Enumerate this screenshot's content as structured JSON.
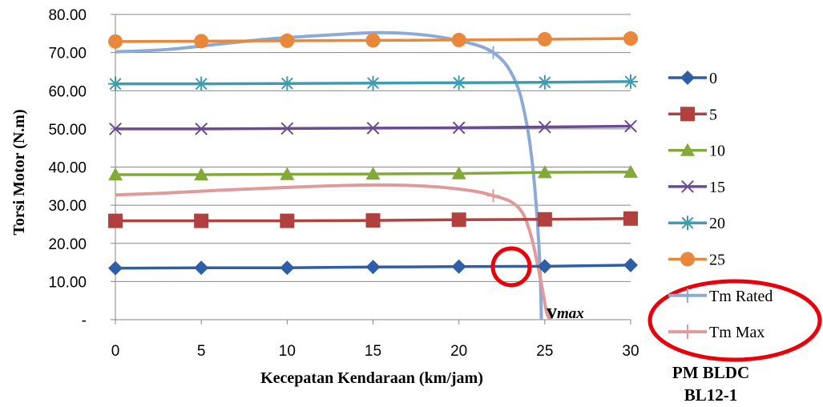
{
  "chart_data": {
    "type": "line",
    "xlabel": "Kecepatan Kendaraan (km/jam)",
    "ylabel": "Torsi Motor (N.m)",
    "xlim": [
      0,
      30
    ],
    "ylim": [
      0,
      80
    ],
    "x_ticks": [
      0,
      5,
      10,
      15,
      20,
      25,
      30
    ],
    "y_tick_labels": [
      "-",
      "10.00",
      "20.00",
      "30.00",
      "40.00",
      "50.00",
      "60.00",
      "70.00",
      "80.00"
    ],
    "grid": "horizontal",
    "legend_position": "right",
    "x": [
      0,
      5,
      10,
      15,
      20,
      25,
      30
    ],
    "series": [
      {
        "name": "0",
        "color": "#2E5EA6",
        "marker": "diamond",
        "values": [
          13.5,
          13.6,
          13.6,
          13.8,
          13.9,
          14.0,
          14.3
        ]
      },
      {
        "name": "5",
        "color": "#B0413E",
        "marker": "square",
        "values": [
          25.9,
          25.9,
          25.9,
          26.0,
          26.2,
          26.3,
          26.5
        ]
      },
      {
        "name": "10",
        "color": "#83A93B",
        "marker": "triangle",
        "values": [
          38.0,
          38.0,
          38.1,
          38.2,
          38.3,
          38.6,
          38.7
        ]
      },
      {
        "name": "15",
        "color": "#6A4C93",
        "marker": "x",
        "values": [
          50.0,
          50.0,
          50.1,
          50.2,
          50.3,
          50.5,
          50.7
        ]
      },
      {
        "name": "20",
        "color": "#3F9BB0",
        "marker": "star",
        "values": [
          61.8,
          61.8,
          61.9,
          62.0,
          62.1,
          62.2,
          62.4
        ]
      },
      {
        "name": "25",
        "color": "#E9883A",
        "marker": "circle",
        "values": [
          72.9,
          73.0,
          73.1,
          73.2,
          73.3,
          73.5,
          73.7
        ]
      }
    ],
    "curves": [
      {
        "name": "Tm Rated",
        "color": "#8DA9D6",
        "marker": "plus",
        "points": [
          [
            0,
            70.2
          ],
          [
            3,
            70.8
          ],
          [
            6,
            72.2
          ],
          [
            9,
            73.6
          ],
          [
            12,
            74.5
          ],
          [
            15,
            75.2
          ],
          [
            17,
            75.0
          ],
          [
            19,
            74.0
          ],
          [
            21,
            72.0
          ],
          [
            22,
            70.0
          ],
          [
            22.8,
            66.5
          ],
          [
            23.5,
            60.0
          ],
          [
            24.0,
            50.0
          ],
          [
            24.3,
            40.0
          ],
          [
            24.5,
            30.0
          ],
          [
            24.65,
            20.0
          ],
          [
            24.75,
            10.0
          ],
          [
            24.8,
            0
          ]
        ],
        "marker_points": [
          [
            22,
            70.0
          ]
        ]
      },
      {
        "name": "Tm Max",
        "color": "#E09A9A",
        "marker": "plus",
        "points": [
          [
            0,
            32.7
          ],
          [
            3,
            33.2
          ],
          [
            6,
            33.9
          ],
          [
            9,
            34.5
          ],
          [
            12,
            35.0
          ],
          [
            15,
            35.3
          ],
          [
            17,
            35.2
          ],
          [
            19,
            34.7
          ],
          [
            21,
            33.6
          ],
          [
            22,
            32.5
          ],
          [
            23,
            31.0
          ],
          [
            23.7,
            28.0
          ],
          [
            24.2,
            22.0
          ],
          [
            24.6,
            14.0
          ],
          [
            24.9,
            7.0
          ],
          [
            25.1,
            2.0
          ],
          [
            25.3,
            0
          ]
        ],
        "marker_points": [
          [
            22,
            32.5
          ]
        ]
      }
    ],
    "annotations": {
      "vmax_main": "v",
      "vmax_sub": "max",
      "caption_line1": "PM BLDC",
      "caption_line2": "BL12-1"
    }
  }
}
